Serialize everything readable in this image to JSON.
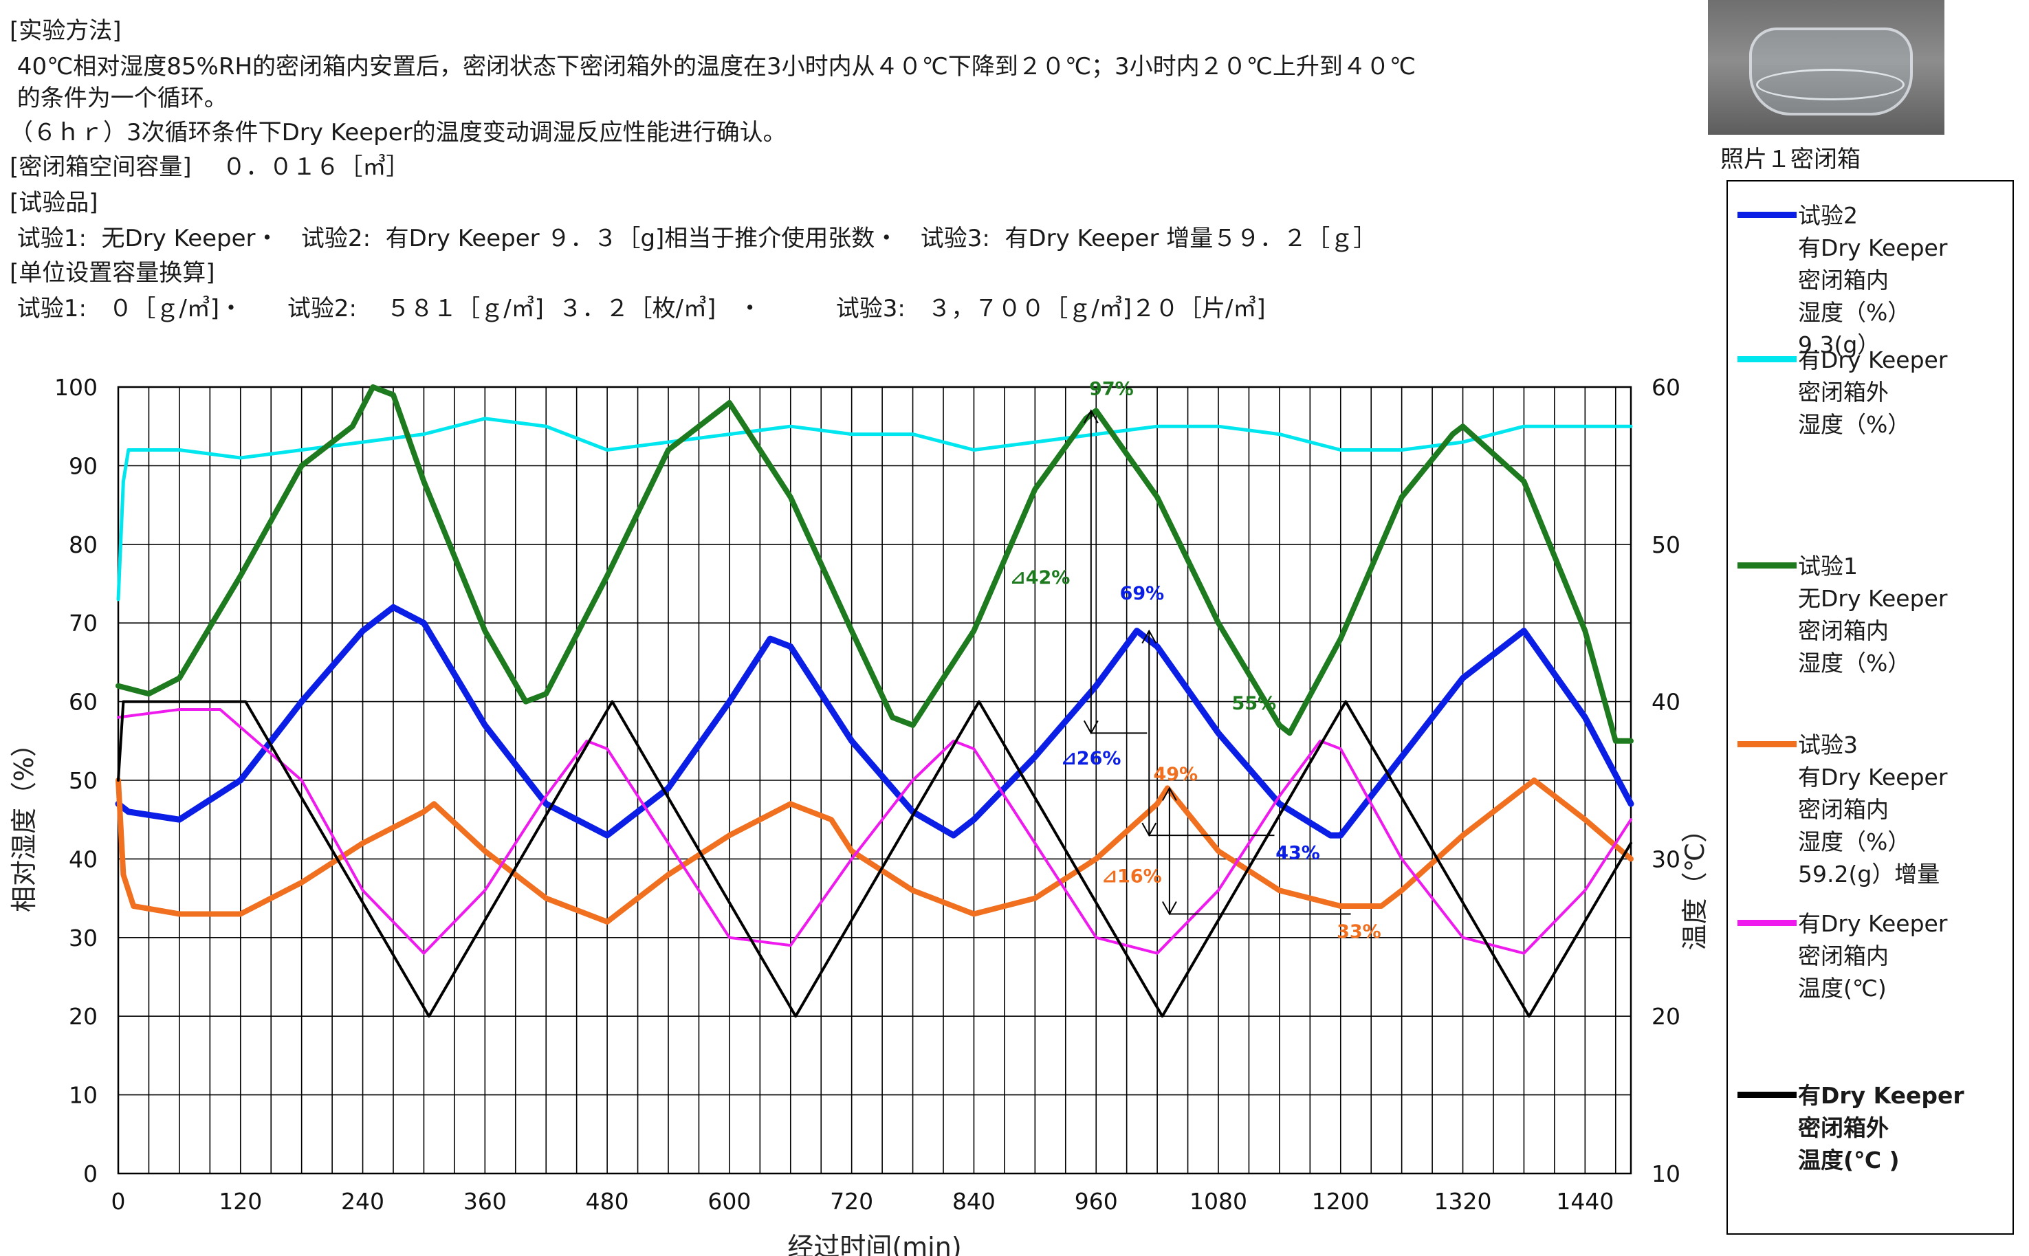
{
  "header": {
    "lines": [
      "[实验方法]",
      " 40℃相对湿度85%RH的密闭箱内安置后，密闭状态下密闭箱外的温度在3小时内从４０℃下降到２０℃；3小时内２０℃上升到４０℃",
      " 的条件为一个循环。",
      "（６ｈｒ）3次循环条件下Dry Keeper的温度变动调湿反应性能进行确认。",
      "[密闭箱空间容量]　 ０．０１６［㎥］",
      "[试验品]",
      " 试验1:  无Dry Keeper・   试验2:  有Dry Keeper ９．３［g]相当于推介使用张数・   试验3:  有Dry Keeper 增量５９．２［ｇ］",
      "[单位设置容量换算]",
      " 试验1:   ０［ｇ/㎥]・      试验2:    ５８１［ｇ/㎥]  ３．２［枚/㎥]   ・          试验3:   ３，７００［ｇ/㎥]２０［片/㎥]"
    ]
  },
  "photo": {
    "caption": "照片１密闭箱"
  },
  "legend": [
    {
      "color": "#0a1ee6",
      "lines": [
        "试验2",
        "有Dry Keeper",
        "密闭箱内",
        "湿度（%）",
        "9.3(g）"
      ]
    },
    {
      "color": "#00e6ee",
      "lines": [
        "有Dry Keeper",
        "密闭箱外",
        "湿度（%）"
      ]
    },
    {
      "color": "#1e7a1e",
      "lines": [
        "试验1",
        "无Dry Keeper",
        "密闭箱内",
        "湿度（%）"
      ]
    },
    {
      "color": "#f07020",
      "lines": [
        "试验3",
        "有Dry Keeper",
        "密闭箱内",
        "湿度（%）",
        "59.2(g）增量"
      ]
    },
    {
      "color": "#ee1aee",
      "lines": [
        "有Dry Keeper",
        "密闭箱内",
        "温度(℃)"
      ]
    },
    {
      "color": "#000000",
      "lines": [
        "有Dry Keeper",
        "密闭箱外",
        "温度(℃ )"
      ]
    }
  ],
  "chart_data": {
    "type": "line",
    "title": "",
    "xlabel": "经过时间(min)",
    "ylabel": "相对湿度（%）",
    "y2label": "温度（℃）",
    "xlim": [
      0,
      1485
    ],
    "ylim": [
      0,
      100
    ],
    "y2lim": [
      10,
      60
    ],
    "xticks": [
      0,
      120,
      240,
      360,
      480,
      600,
      720,
      840,
      960,
      1080,
      1200,
      1320,
      1440
    ],
    "yticks": [
      0,
      10,
      20,
      30,
      40,
      50,
      60,
      70,
      80,
      90,
      100
    ],
    "y2ticks": [
      10,
      20,
      30,
      40,
      50,
      60
    ],
    "grid": true,
    "series": [
      {
        "name": "有Dry Keeper 密闭箱外 湿度（%）",
        "axis": "left",
        "color": "#00e6ee",
        "x": [
          0,
          5,
          10,
          60,
          120,
          180,
          240,
          300,
          360,
          420,
          480,
          540,
          600,
          660,
          720,
          780,
          840,
          900,
          960,
          1020,
          1080,
          1140,
          1200,
          1260,
          1320,
          1380,
          1440,
          1485
        ],
        "y": [
          73,
          88,
          92,
          92,
          91,
          92,
          93,
          94,
          96,
          95,
          92,
          93,
          94,
          95,
          94,
          94,
          92,
          93,
          94,
          95,
          95,
          94,
          92,
          92,
          93,
          95,
          95,
          95
        ]
      },
      {
        "name": "试验1 无Dry Keeper 密闭箱内 湿度（%）",
        "axis": "left",
        "color": "#1e7a1e",
        "x": [
          0,
          30,
          60,
          120,
          180,
          230,
          250,
          270,
          300,
          360,
          400,
          420,
          480,
          540,
          600,
          660,
          720,
          760,
          780,
          840,
          900,
          950,
          960,
          1020,
          1080,
          1140,
          1150,
          1200,
          1260,
          1310,
          1320,
          1380,
          1440,
          1470,
          1485
        ],
        "y": [
          62,
          61,
          63,
          76,
          90,
          95,
          100,
          99,
          88,
          69,
          60,
          61,
          76,
          92,
          98,
          86,
          69,
          58,
          57,
          69,
          87,
          96,
          97,
          86,
          70,
          57,
          56,
          68,
          86,
          94,
          95,
          88,
          69,
          55,
          55
        ]
      },
      {
        "name": "试验2 有Dry Keeper 密闭箱内 湿度（%）",
        "axis": "left",
        "color": "#0a1ee6",
        "x": [
          0,
          10,
          60,
          120,
          180,
          240,
          270,
          300,
          360,
          420,
          480,
          540,
          600,
          640,
          660,
          720,
          780,
          820,
          840,
          900,
          960,
          1000,
          1020,
          1080,
          1140,
          1190,
          1200,
          1260,
          1320,
          1380,
          1440,
          1485
        ],
        "y": [
          47,
          46,
          45,
          50,
          60,
          69,
          72,
          70,
          57,
          47,
          43,
          49,
          60,
          68,
          67,
          55,
          46,
          43,
          45,
          53,
          62,
          69,
          67,
          56,
          47,
          43,
          43,
          53,
          63,
          69,
          58,
          47
        ]
      },
      {
        "name": "试验3 有Dry Keeper 密闭箱内 湿度（%）",
        "axis": "left",
        "color": "#f07020",
        "x": [
          0,
          5,
          15,
          60,
          120,
          180,
          240,
          300,
          310,
          360,
          420,
          480,
          540,
          600,
          660,
          700,
          720,
          780,
          840,
          900,
          960,
          1020,
          1030,
          1080,
          1140,
          1200,
          1240,
          1260,
          1320,
          1380,
          1390,
          1440,
          1485
        ],
        "y": [
          50,
          38,
          34,
          33,
          33,
          37,
          42,
          46,
          47,
          41,
          35,
          32,
          38,
          43,
          47,
          45,
          41,
          36,
          33,
          35,
          40,
          47,
          49,
          41,
          36,
          34,
          34,
          36,
          43,
          49,
          50,
          45,
          40
        ]
      },
      {
        "name": "有Dry Keeper 密闭箱内 温度(℃)",
        "axis": "right",
        "color": "#ee1aee",
        "x": [
          0,
          60,
          100,
          180,
          240,
          300,
          360,
          420,
          460,
          480,
          540,
          600,
          660,
          720,
          780,
          820,
          840,
          900,
          960,
          1020,
          1080,
          1140,
          1180,
          1200,
          1260,
          1320,
          1380,
          1440,
          1485
        ],
        "y": [
          39,
          39.5,
          39.5,
          35,
          28,
          24,
          28,
          34,
          37.5,
          37,
          31,
          25,
          24.5,
          30,
          35,
          37.5,
          37,
          31,
          25,
          24,
          28,
          34,
          37.5,
          37,
          30,
          25,
          24,
          28,
          32.5
        ]
      },
      {
        "name": "有Dry Keeper 密闭箱外 温度(℃ )",
        "axis": "right",
        "color": "#000000",
        "x": [
          0,
          5,
          125,
          305,
          485,
          665,
          845,
          1025,
          1205,
          1385,
          1485
        ],
        "y": [
          35,
          40,
          40,
          20,
          40,
          20,
          40,
          20,
          40,
          20,
          31
        ]
      }
    ],
    "annotations": [
      {
        "text": "97%",
        "color": "#1e7a1e",
        "x": 975,
        "y": 99
      },
      {
        "text": "⊿42%",
        "color": "#1e7a1e",
        "x": 905,
        "y": 75
      },
      {
        "text": "69%",
        "color": "#0a1ee6",
        "x": 1005,
        "y": 73
      },
      {
        "text": "55%",
        "color": "#1e7a1e",
        "x": 1115,
        "y": 59
      },
      {
        "text": "⊿26%",
        "color": "#0a1ee6",
        "x": 955,
        "y": 52
      },
      {
        "text": "49%",
        "color": "#f07020",
        "x": 1038,
        "y": 50
      },
      {
        "text": "⊿16%",
        "color": "#f07020",
        "x": 995,
        "y": 37
      },
      {
        "text": "43%",
        "color": "#0a1ee6",
        "x": 1158,
        "y": 40
      },
      {
        "text": "33%",
        "color": "#f07020",
        "x": 1218,
        "y": 30
      }
    ]
  }
}
